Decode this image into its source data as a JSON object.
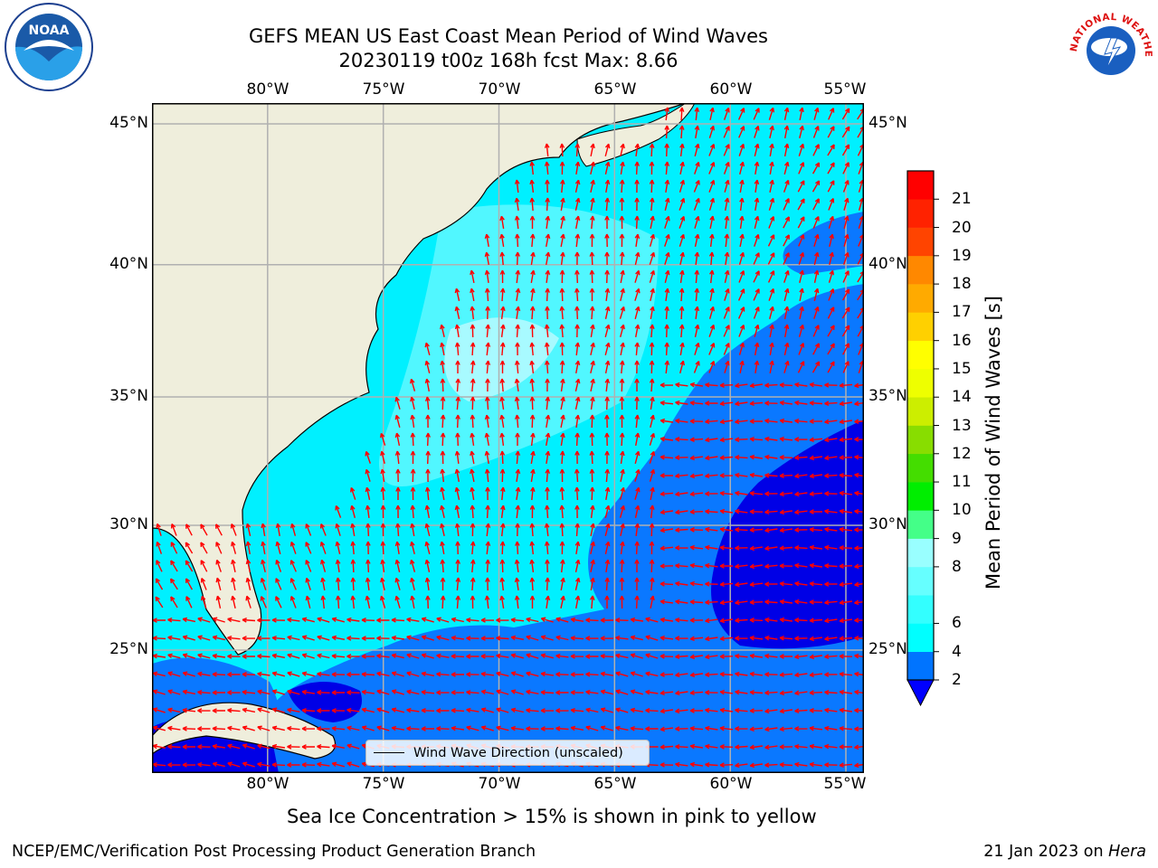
{
  "title": {
    "line1": "GEFS MEAN US East Coast Mean Period of Wind Waves",
    "line2": "20230119 t00z 168h fcst   Max: 8.66"
  },
  "map": {
    "lon_labels": [
      "80°W",
      "75°W",
      "70°W",
      "65°W",
      "60°W",
      "55°W"
    ],
    "lat_labels": [
      "45°N",
      "40°N",
      "35°N",
      "30°N",
      "25°N"
    ],
    "lon_range": [
      -85,
      -55
    ],
    "lat_range": [
      20.5,
      45.8
    ],
    "colors": {
      "land": "#efeedc",
      "field_light": "#00ffff",
      "field_mid": "#0080ff",
      "field_low": "#0000e0",
      "arrows": "#ff0000",
      "grid": "#b0b0b0"
    }
  },
  "legend": {
    "label": "Wind Wave Direction (unscaled)"
  },
  "colorbar": {
    "title": "Mean Period of Wind Waves [s]",
    "labels": [
      "21",
      "20",
      "19",
      "18",
      "17",
      "16",
      "15",
      "14",
      "13",
      "12",
      "11",
      "10",
      "9",
      "8",
      "6",
      "4",
      "2"
    ],
    "bounds": [
      2,
      4,
      6,
      7,
      8,
      9,
      10,
      11,
      12,
      13,
      14,
      15,
      16,
      17,
      18,
      19,
      20,
      21
    ],
    "colors": [
      "#0074ff",
      "#00ffff",
      "#33ffff",
      "#66ffff",
      "#99ffff",
      "#44ff88",
      "#00ee00",
      "#44dd00",
      "#88dd00",
      "#ccee00",
      "#eeff00",
      "#ffff00",
      "#ffd000",
      "#ffaa00",
      "#ff8800",
      "#ff4400",
      "#ff2200",
      "#ff0000"
    ],
    "under_color": "#0000ff"
  },
  "caption": "Sea Ice Concentration > 15% is shown in pink to yellow",
  "footer": {
    "left": "NCEP/EMC/Verification Post Processing Product Generation Branch",
    "right_date": "21 Jan 2023 on ",
    "right_host": "Hera"
  },
  "logos": {
    "noaa_text": "NOAA",
    "nws_text": "NATIONAL WEATHER SERVICE"
  }
}
